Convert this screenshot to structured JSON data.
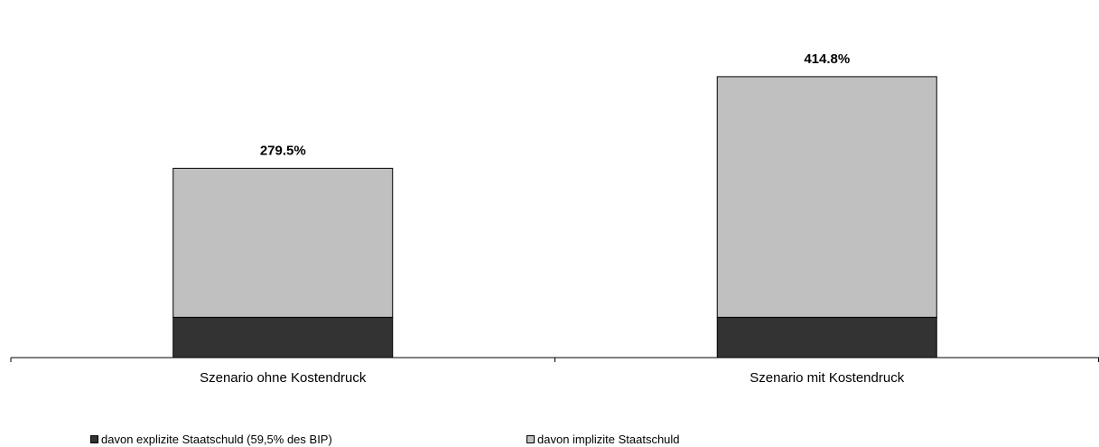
{
  "chart_data": {
    "type": "bar",
    "stacked": true,
    "categories": [
      "Szenario ohne Kostendruck",
      "Szenario mit Kostendruck"
    ],
    "series": [
      {
        "name": "davon explizite Staatschuld (59,5% des BIP)",
        "values": [
          59.5,
          59.5
        ],
        "color": "#333333"
      },
      {
        "name": "davon implizite Staatschuld",
        "values": [
          220.0,
          355.3
        ],
        "color": "#c0c0c0"
      }
    ],
    "totals": [
      279.5,
      414.8
    ],
    "total_labels": [
      "279.5%",
      "414.8%"
    ],
    "ylim": [
      0,
      480
    ],
    "legend_position": "bottom",
    "grid": false
  }
}
